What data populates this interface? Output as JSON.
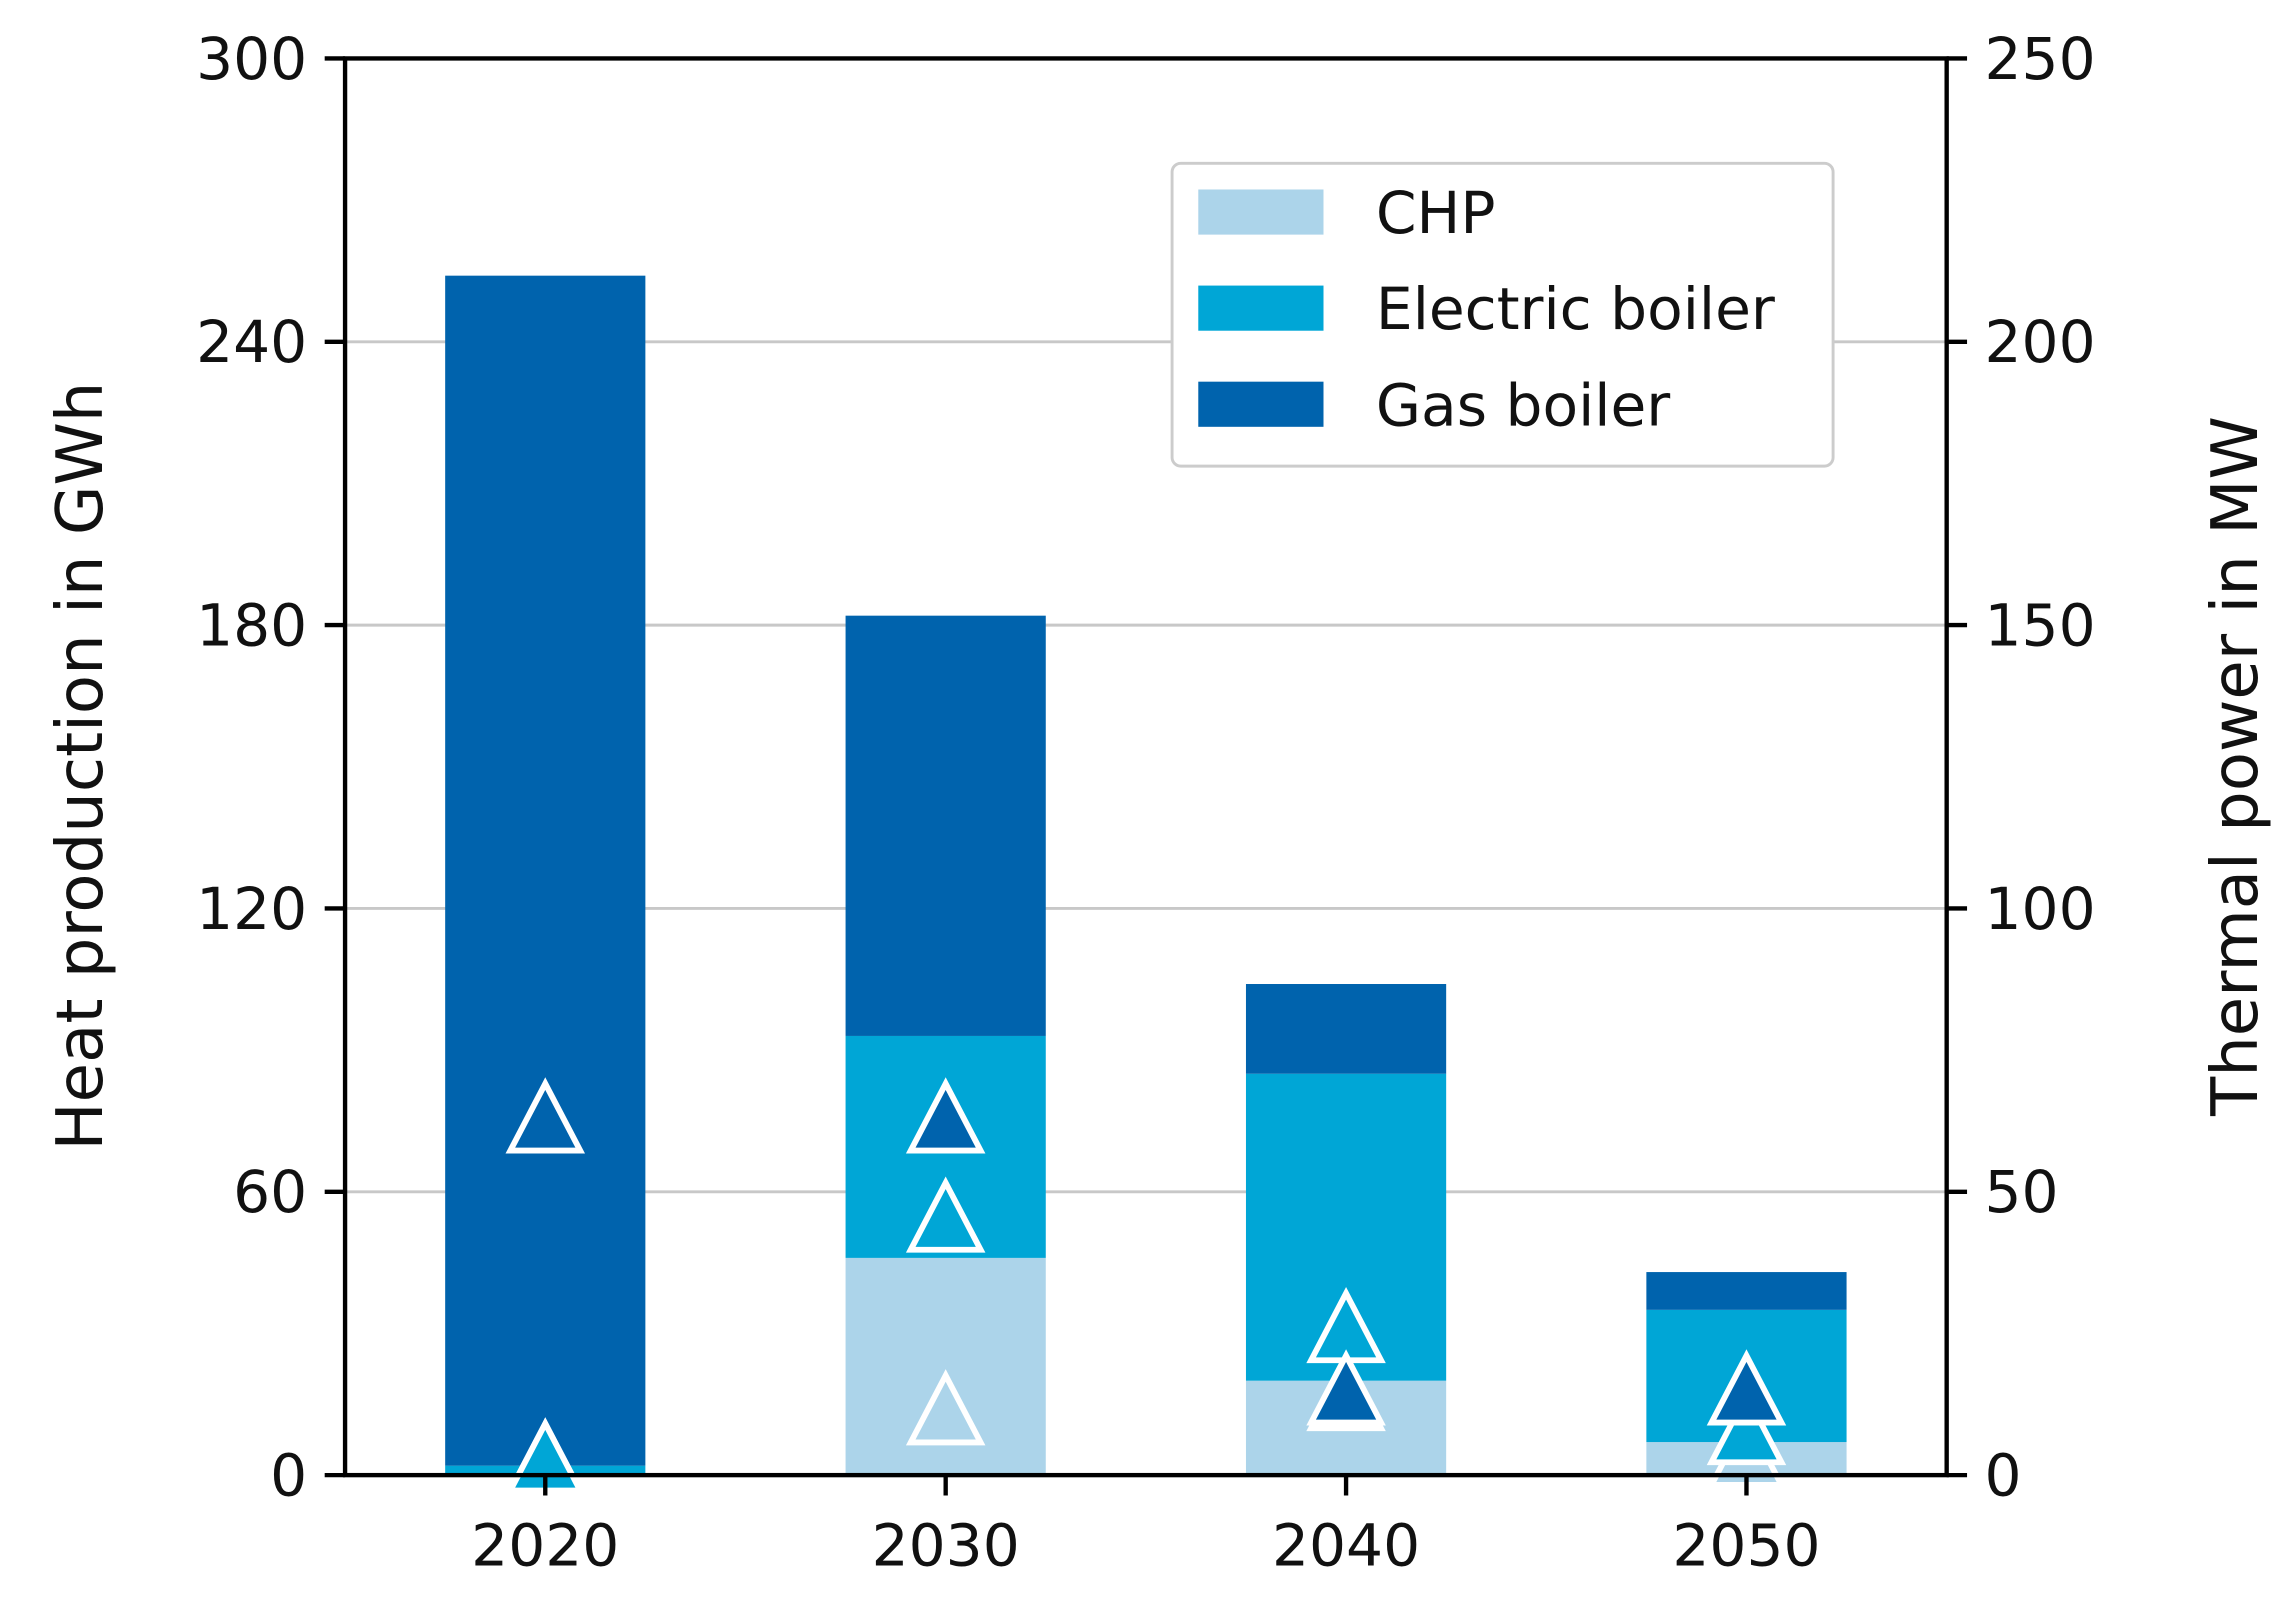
{
  "chart_data": {
    "type": "bar",
    "stacked": true,
    "categories": [
      "2020",
      "2030",
      "2040",
      "2050"
    ],
    "ylabel": "Heat production in GWh",
    "ylim": [
      0,
      300
    ],
    "yticks": [
      "0",
      "60",
      "120",
      "180",
      "240",
      "300"
    ],
    "y2label": "Thermal power in MW",
    "y2lim": [
      0,
      250
    ],
    "y2ticks": [
      "0",
      "50",
      "100",
      "150",
      "200",
      "250"
    ],
    "grid": "horizontal",
    "legend_position": "top-right",
    "series": [
      {
        "name": "CHP",
        "color": "#acd4ea",
        "values": [
          0,
          46,
          20,
          7
        ],
        "capacity_mw": [
          2,
          10.5,
          13,
          3
        ]
      },
      {
        "name": "Electric boiler",
        "color": "#00a6d6",
        "values": [
          2,
          47,
          65,
          28
        ],
        "capacity_mw": [
          2,
          44.5,
          25,
          7
        ]
      },
      {
        "name": "Gas boiler",
        "color": "#0063ad",
        "values": [
          252,
          89,
          19,
          8
        ],
        "capacity_mw": [
          62,
          62,
          14,
          14
        ]
      }
    ],
    "capacity_marker": "triangle"
  }
}
